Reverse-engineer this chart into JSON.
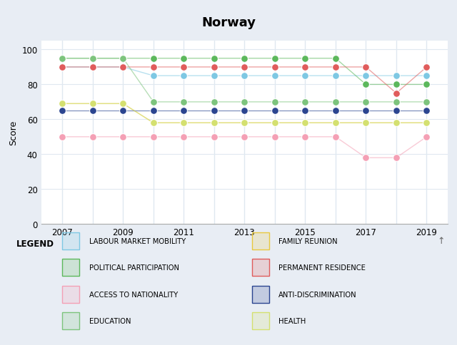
{
  "title": "Norway",
  "ylabel": "Score",
  "years": [
    2007,
    2008,
    2009,
    2010,
    2011,
    2012,
    2013,
    2014,
    2015,
    2016,
    2017,
    2018,
    2019
  ],
  "series": {
    "LABOUR MARKET MOBILITY": {
      "values": [
        90,
        90,
        90,
        85,
        85,
        85,
        85,
        85,
        85,
        85,
        85,
        85,
        85
      ],
      "color": "#7EC8E3"
    },
    "FAMILY REUNION": {
      "values": [
        69,
        69,
        69,
        58,
        58,
        58,
        58,
        58,
        58,
        58,
        58,
        58,
        58
      ],
      "color": "#E8C840"
    },
    "POLITICAL PARTICIPATION": {
      "values": [
        95,
        95,
        95,
        95,
        95,
        95,
        95,
        95,
        95,
        95,
        80,
        80,
        80
      ],
      "color": "#5CB85C"
    },
    "PERMANENT RESIDENCE": {
      "values": [
        90,
        90,
        90,
        90,
        90,
        90,
        90,
        90,
        90,
        90,
        90,
        75,
        90
      ],
      "color": "#E05C5C"
    },
    "ACCESS TO NATIONALITY": {
      "values": [
        50,
        50,
        50,
        50,
        50,
        50,
        50,
        50,
        50,
        50,
        38,
        38,
        50
      ],
      "color": "#F4A0B5"
    },
    "ANTI-DISCRIMINATION": {
      "values": [
        65,
        65,
        65,
        65,
        65,
        65,
        65,
        65,
        65,
        65,
        65,
        65,
        65
      ],
      "color": "#2B4590"
    },
    "EDUCATION": {
      "values": [
        95,
        95,
        95,
        70,
        70,
        70,
        70,
        70,
        70,
        70,
        70,
        70,
        70
      ],
      "color": "#7DC47D"
    },
    "HEALTH": {
      "values": [
        69,
        69,
        69,
        58,
        58,
        58,
        58,
        58,
        58,
        58,
        58,
        58,
        58
      ],
      "color": "#D4E070"
    }
  },
  "ylim": [
    0,
    105
  ],
  "yticks": [
    0,
    20,
    40,
    60,
    80,
    100
  ],
  "outer_bg": "#E8EDF4",
  "plot_bg": "#FFFFFF",
  "title_bg": "#FFFFFF",
  "legend_bg": "#F0F0F0",
  "grid_color": "#E0E8F0",
  "legend_order_left": [
    "LABOUR MARKET MOBILITY",
    "POLITICAL PARTICIPATION",
    "ACCESS TO NATIONALITY",
    "EDUCATION"
  ],
  "legend_order_right": [
    "FAMILY REUNION",
    "PERMANENT RESIDENCE",
    "ANTI-DISCRIMINATION",
    "HEALTH"
  ],
  "legend_colors": {
    "LABOUR MARKET MOBILITY": "#7EC8E3",
    "FAMILY REUNION": "#E8C840",
    "POLITICAL PARTICIPATION": "#5CB85C",
    "PERMANENT RESIDENCE": "#E05C5C",
    "ACCESS TO NATIONALITY": "#F4A0B5",
    "ANTI-DISCRIMINATION": "#2B4590",
    "EDUCATION": "#7DC47D",
    "HEALTH": "#D4E070"
  }
}
